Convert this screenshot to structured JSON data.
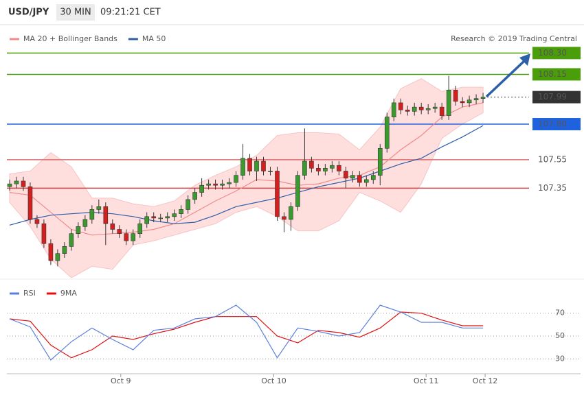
{
  "chart_data": [
    {
      "type": "candlestick",
      "title": "USD/JPY",
      "subtitle": "30 MIN",
      "time": "09:21:21 CET",
      "source": "Research © 2019 Trading Central",
      "xlim": [
        -0.4,
        74
      ],
      "ylim": [
        106.72,
        108.48
      ],
      "candles": {
        "up_color": "#3a9a2e",
        "down_color": "#d41f1f",
        "open": [
          107.36,
          107.38,
          107.4,
          107.36,
          107.13,
          107.1,
          106.96,
          106.84,
          106.89,
          106.94,
          107.03,
          107.08,
          107.13,
          107.2,
          107.22,
          107.1,
          107.06,
          107.03,
          106.98,
          107.03,
          107.1,
          107.15,
          107.14,
          107.14,
          107.15,
          107.17,
          107.2,
          107.27,
          107.32,
          107.37,
          107.38,
          107.37,
          107.38,
          107.39,
          107.44,
          107.56,
          107.47,
          107.54,
          107.47,
          107.47,
          107.15,
          107.13,
          107.22,
          107.44,
          107.54,
          107.49,
          107.47,
          107.49,
          107.51,
          107.47,
          107.42,
          107.44,
          107.39,
          107.41,
          107.44,
          107.63,
          107.85,
          107.95,
          107.9,
          107.89,
          107.92,
          107.9,
          107.91,
          107.92,
          107.86,
          108.04,
          107.96,
          107.95,
          107.97,
          107.98
        ],
        "high": [
          107.41,
          107.43,
          107.43,
          107.39,
          107.16,
          107.13,
          106.99,
          106.92,
          106.97,
          107.06,
          107.11,
          107.16,
          107.23,
          107.27,
          107.25,
          107.13,
          107.09,
          107.06,
          107.06,
          107.13,
          107.18,
          107.18,
          107.17,
          107.18,
          107.2,
          107.23,
          107.3,
          107.35,
          107.42,
          107.41,
          107.41,
          107.41,
          107.42,
          107.47,
          107.66,
          107.59,
          107.57,
          107.57,
          107.5,
          107.5,
          107.18,
          107.25,
          107.47,
          107.77,
          107.57,
          107.52,
          107.52,
          107.54,
          107.54,
          107.5,
          107.47,
          107.47,
          107.44,
          107.47,
          107.66,
          107.88,
          107.98,
          107.98,
          107.93,
          107.95,
          107.95,
          107.94,
          107.95,
          107.95,
          108.14,
          108.07,
          107.99,
          108.0,
          108.01,
          108.02
        ],
        "low": [
          107.33,
          107.35,
          107.33,
          107.1,
          107.07,
          106.93,
          106.81,
          106.8,
          106.86,
          106.91,
          107.0,
          107.05,
          107.1,
          107.17,
          106.95,
          107.03,
          107.0,
          106.95,
          106.95,
          107.0,
          107.07,
          107.11,
          107.11,
          107.11,
          107.12,
          107.14,
          107.17,
          107.24,
          107.29,
          107.34,
          107.34,
          107.34,
          107.35,
          107.36,
          107.41,
          107.44,
          107.4,
          107.44,
          107.44,
          107.12,
          107.04,
          107.05,
          107.19,
          107.41,
          107.46,
          107.44,
          107.44,
          107.46,
          107.44,
          107.35,
          107.39,
          107.36,
          107.36,
          107.38,
          107.37,
          107.6,
          107.82,
          107.87,
          107.86,
          107.86,
          107.87,
          107.87,
          107.88,
          107.83,
          107.83,
          107.93,
          107.92,
          107.92,
          107.94,
          107.95
        ],
        "close": [
          107.38,
          107.4,
          107.36,
          107.13,
          107.1,
          106.96,
          106.84,
          106.89,
          106.94,
          107.03,
          107.08,
          107.13,
          107.2,
          107.22,
          107.1,
          107.06,
          107.03,
          106.98,
          107.03,
          107.1,
          107.15,
          107.14,
          107.14,
          107.15,
          107.17,
          107.2,
          107.27,
          107.32,
          107.37,
          107.38,
          107.37,
          107.38,
          107.39,
          107.44,
          107.56,
          107.47,
          107.54,
          107.47,
          107.47,
          107.15,
          107.13,
          107.22,
          107.44,
          107.54,
          107.49,
          107.47,
          107.49,
          107.51,
          107.47,
          107.42,
          107.44,
          107.39,
          107.41,
          107.44,
          107.63,
          107.85,
          107.95,
          107.9,
          107.89,
          107.92,
          107.9,
          107.91,
          107.92,
          107.86,
          108.04,
          107.96,
          107.95,
          107.97,
          107.98,
          107.99
        ]
      },
      "series": [
        {
          "name": "MA 20 + Bollinger Bands",
          "color": "#f08a8a",
          "band_color": "#ffdede",
          "x": [
            0,
            3,
            6,
            9,
            12,
            15,
            18,
            21,
            24,
            27,
            30,
            33,
            36,
            39,
            42,
            45,
            48,
            51,
            54,
            57,
            60,
            63,
            66,
            69
          ],
          "values": [
            107.32,
            107.3,
            107.18,
            107.06,
            107.02,
            107.03,
            107.04,
            107.06,
            107.1,
            107.18,
            107.26,
            107.33,
            107.41,
            107.4,
            107.37,
            107.38,
            107.42,
            107.44,
            107.5,
            107.62,
            107.72,
            107.85,
            107.92,
            107.95
          ],
          "upper": [
            107.45,
            107.47,
            107.6,
            107.5,
            107.28,
            107.28,
            107.24,
            107.22,
            107.26,
            107.37,
            107.44,
            107.5,
            107.58,
            107.72,
            107.74,
            107.74,
            107.73,
            107.62,
            107.78,
            108.05,
            108.12,
            108.03,
            108.06,
            108.06
          ],
          "lower": [
            107.25,
            107.08,
            106.85,
            106.72,
            106.8,
            106.78,
            106.95,
            106.98,
            107.02,
            107.06,
            107.1,
            107.18,
            107.22,
            107.15,
            107.05,
            107.05,
            107.12,
            107.32,
            107.26,
            107.18,
            107.38,
            107.7,
            107.8,
            107.88
          ]
        },
        {
          "name": "MA 50",
          "color": "#2d5ea8",
          "x": [
            0,
            3,
            6,
            9,
            12,
            15,
            18,
            21,
            24,
            27,
            30,
            33,
            36,
            39,
            42,
            45,
            48,
            51,
            54,
            57,
            60,
            63,
            66,
            69
          ],
          "values": [
            107.09,
            107.13,
            107.16,
            107.17,
            107.18,
            107.17,
            107.15,
            107.12,
            107.1,
            107.11,
            107.16,
            107.22,
            107.25,
            107.28,
            107.32,
            107.36,
            107.39,
            107.42,
            107.47,
            107.52,
            107.56,
            107.64,
            107.71,
            107.79
          ]
        }
      ],
      "levels": [
        {
          "value": 108.3,
          "label": "108.30",
          "color": "#4a9e0a",
          "boxed": true
        },
        {
          "value": 108.15,
          "label": "108.15",
          "color": "#4a9e0a",
          "boxed": true
        },
        {
          "value": 107.99,
          "label": "107.99",
          "color": "#333333",
          "boxed": true,
          "dashed": true
        },
        {
          "value": 107.8,
          "label": "107.80",
          "color": "#1f62e0",
          "boxed": true
        },
        {
          "value": 107.55,
          "label": "107.55",
          "color": "#e06a6a",
          "boxed": false
        },
        {
          "value": 107.35,
          "label": "107.35",
          "color": "#d44040",
          "boxed": false
        }
      ]
    },
    {
      "type": "line",
      "xlim": [
        -0.4,
        74
      ],
      "ylim": [
        20,
        98
      ],
      "yticks": [
        30,
        50,
        70
      ],
      "grid": true,
      "x": [
        0,
        3,
        6,
        9,
        12,
        15,
        18,
        21,
        24,
        27,
        30,
        33,
        36,
        39,
        42,
        45,
        48,
        51,
        54,
        57,
        60,
        63,
        66,
        69
      ],
      "xticks": [
        {
          "value": 16.2,
          "label": "Oct 9"
        },
        {
          "value": 38.5,
          "label": "Oct 10"
        },
        {
          "value": 60.7,
          "label": "Oct 11"
        },
        {
          "value": 69.3,
          "label": "Oct 12"
        }
      ],
      "series": [
        {
          "name": "RSI",
          "color": "#5b7fdc",
          "values": [
            65,
            58,
            29,
            45,
            57,
            47,
            38,
            55,
            57,
            65,
            67,
            77,
            62,
            31,
            57,
            54,
            50,
            53,
            77,
            71,
            62,
            62,
            57,
            57
          ]
        },
        {
          "name": "9MA",
          "color": "#e01010",
          "values": [
            65,
            63,
            42,
            31,
            38,
            50,
            47,
            52,
            56,
            62,
            67,
            67,
            67,
            50,
            44,
            55,
            53,
            49,
            57,
            71,
            70,
            64,
            59,
            59
          ]
        }
      ]
    }
  ]
}
